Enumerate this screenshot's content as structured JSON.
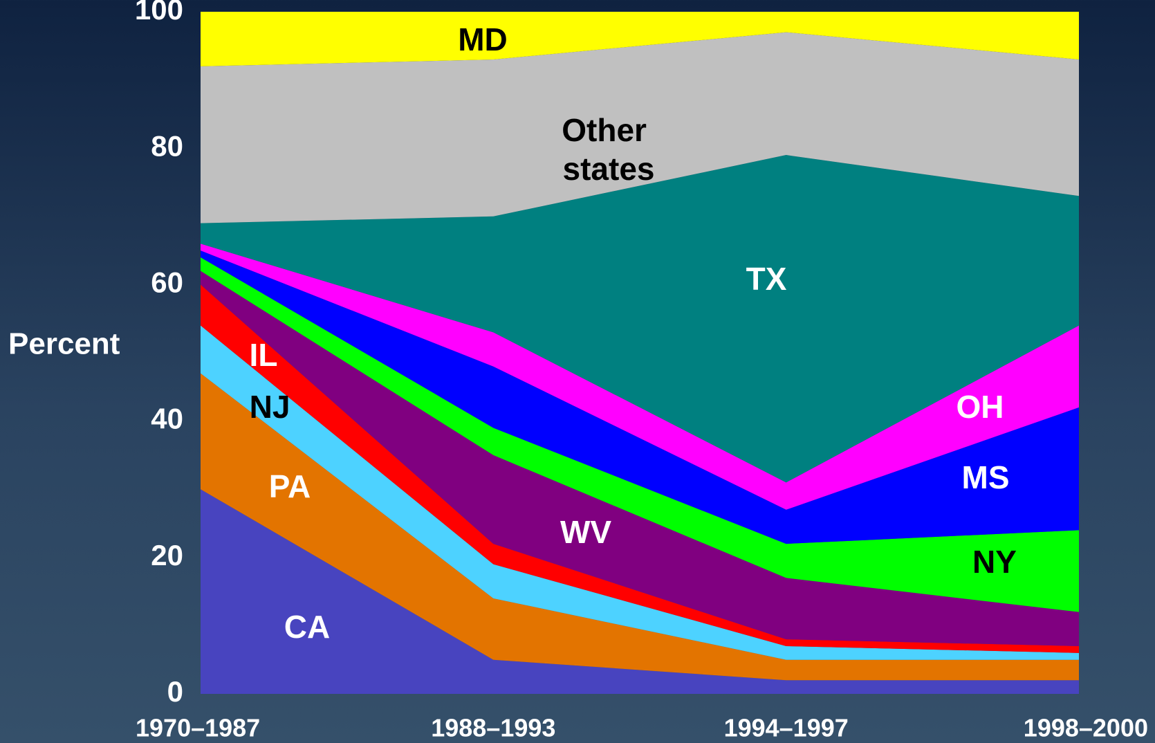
{
  "chart_data": {
    "type": "stacked_area",
    "y_label": "Percent",
    "categories": [
      "1970–1987",
      "1988–1993",
      "1994–1997",
      "1998–2000"
    ],
    "ylim": [
      0,
      100
    ],
    "yticks": [
      0,
      20,
      40,
      60,
      80,
      100
    ],
    "series": [
      {
        "name": "CA",
        "color": "#4844bf",
        "values": [
          30,
          5,
          2,
          2
        ]
      },
      {
        "name": "PA",
        "color": "#e37400",
        "values": [
          17,
          9,
          3,
          3
        ]
      },
      {
        "name": "NJ",
        "color": "#4dd2ff",
        "values": [
          7,
          5,
          2,
          1
        ]
      },
      {
        "name": "IL",
        "color": "#ff0000",
        "values": [
          6,
          3,
          1,
          1
        ]
      },
      {
        "name": "WV",
        "color": "#800080",
        "values": [
          2,
          13,
          9,
          5
        ]
      },
      {
        "name": "NY",
        "color": "#00ff00",
        "values": [
          2,
          4,
          5,
          12
        ]
      },
      {
        "name": "MS",
        "color": "#0000ff",
        "values": [
          1,
          9,
          5,
          18
        ]
      },
      {
        "name": "OH",
        "color": "#ff00ff",
        "values": [
          1,
          5,
          4,
          12
        ]
      },
      {
        "name": "TX",
        "color": "#008080",
        "values": [
          3,
          17,
          48,
          19
        ]
      },
      {
        "name": "Other states",
        "color": "#c0c0c0",
        "values": [
          23,
          23,
          18,
          20
        ]
      },
      {
        "name": "MD",
        "color": "#ffff00",
        "values": [
          8,
          7,
          3,
          7
        ]
      }
    ]
  }
}
